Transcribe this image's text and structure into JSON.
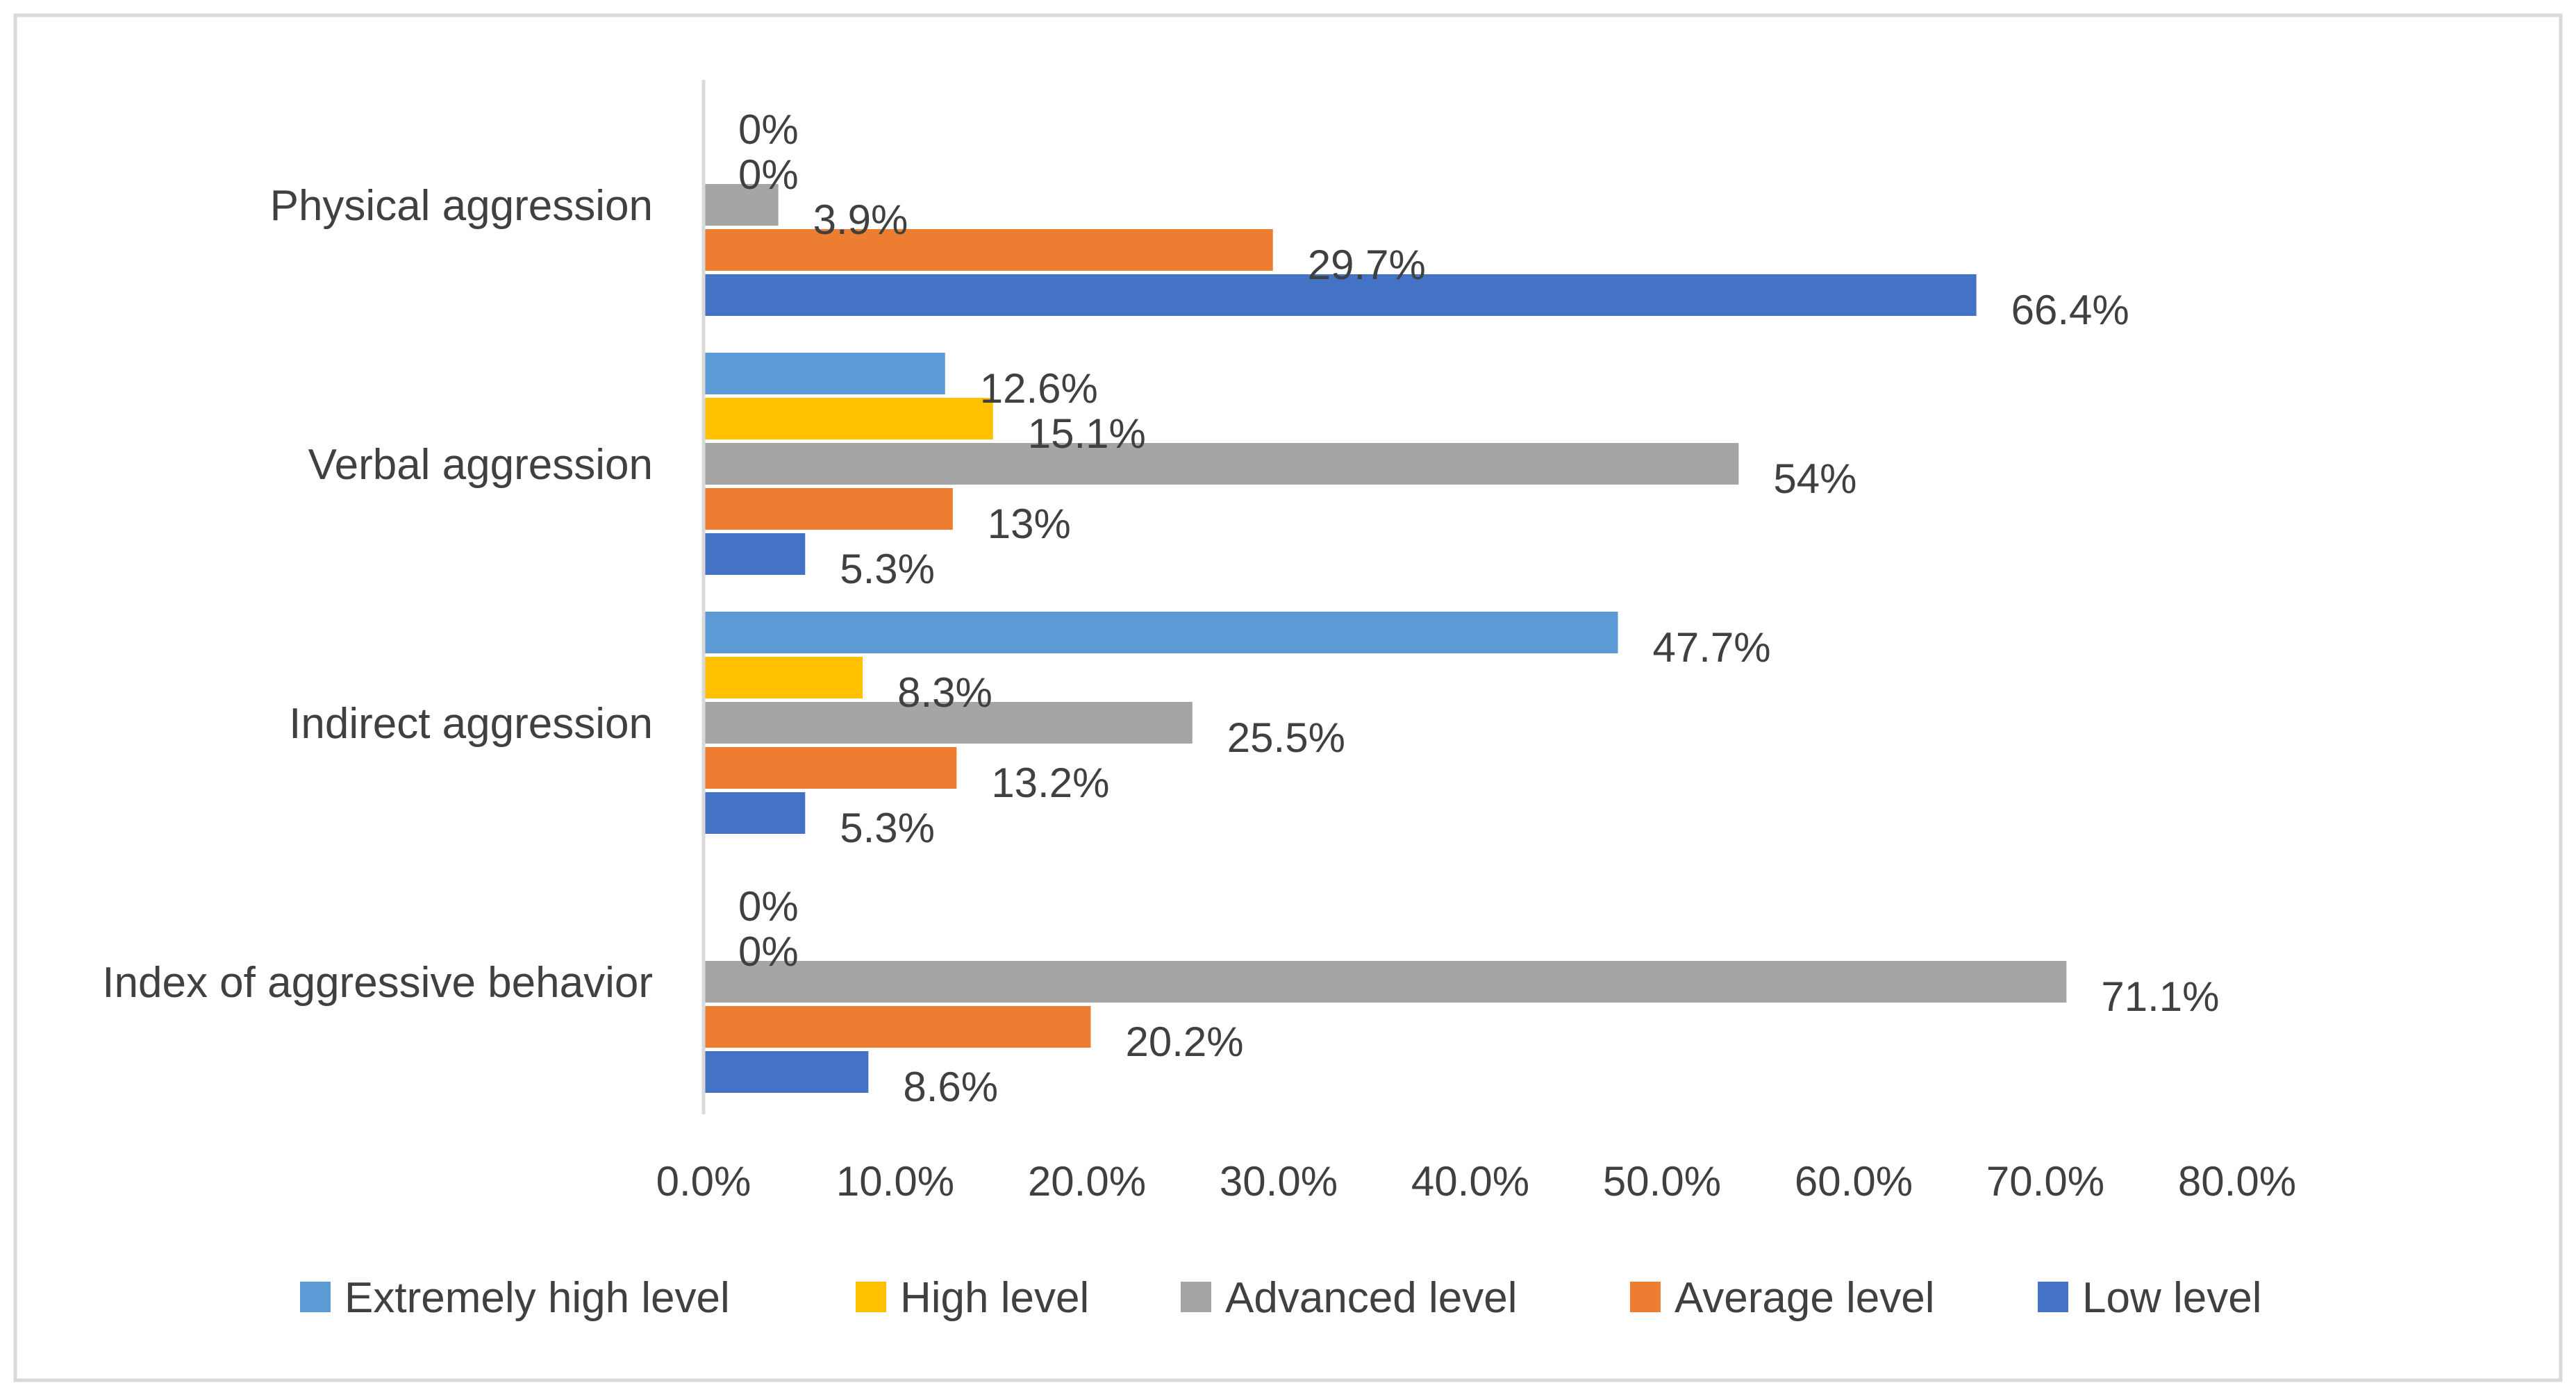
{
  "chart_data": {
    "type": "bar",
    "orientation": "horizontal",
    "title": "",
    "xlabel": "",
    "ylabel": "",
    "xlim": [
      0,
      80
    ],
    "x_ticks": [
      "0.0%",
      "10.0%",
      "20.0%",
      "30.0%",
      "40.0%",
      "50.0%",
      "60.0%",
      "70.0%",
      "80.0%"
    ],
    "grid": false,
    "legend_position": "bottom",
    "categories": [
      "Physical aggression",
      "Verbal aggression",
      "Indirect aggression",
      "Index of aggressive behavior"
    ],
    "series": [
      {
        "name": "Extremely high level",
        "color": "#5B9BD5",
        "values": [
          0,
          12.6,
          47.7,
          0
        ],
        "labels": [
          "0%",
          "12.6%",
          "47.7%",
          "0%"
        ]
      },
      {
        "name": "High level",
        "color": "#FFC000",
        "values": [
          0,
          15.1,
          8.3,
          0
        ],
        "labels": [
          "0%",
          "15.1%",
          "8.3%",
          "0%"
        ]
      },
      {
        "name": "Advanced level",
        "color": "#A5A5A5",
        "values": [
          3.9,
          54,
          25.5,
          71.1
        ],
        "labels": [
          "3.9%",
          "54%",
          "25.5%",
          "71.1%"
        ]
      },
      {
        "name": "Average level",
        "color": "#ED7D31",
        "values": [
          29.7,
          13,
          13.2,
          20.2
        ],
        "labels": [
          "29.7%",
          "13%",
          "13.2%",
          "20.2%"
        ]
      },
      {
        "name": "Low level",
        "color": "#4472C4",
        "values": [
          66.4,
          5.3,
          5.3,
          8.6
        ],
        "labels": [
          "66.4%",
          "5.3%",
          "5.3%",
          "8.6%"
        ]
      }
    ]
  }
}
